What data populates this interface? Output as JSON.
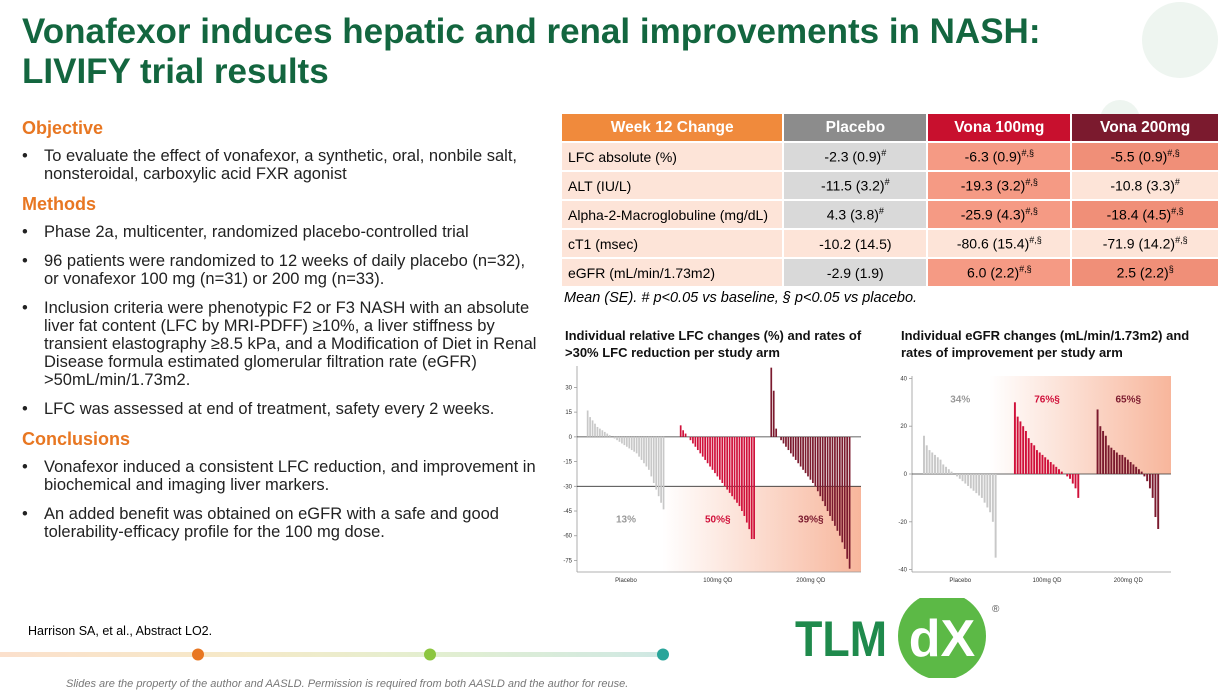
{
  "slide": {
    "title": "Vonafexor induces hepatic and renal improvements in NASH: LIVIFY trial results",
    "sections": [
      {
        "heading": "Objective",
        "bullets": [
          "To evaluate the effect of vonafexor, a synthetic, oral, nonbile salt, nonsteroidal, carboxylic acid FXR agonist"
        ]
      },
      {
        "heading": "Methods",
        "bullets": [
          "Phase 2a, multicenter, randomized placebo-controlled trial",
          "96 patients were randomized to 12 weeks of daily placebo (n=32), or vonafexor 100 mg (n=31) or 200 mg (n=33).",
          "Inclusion criteria were phenotypic F2 or F3 NASH with an absolute liver fat content (LFC by MRI-PDFF) ≥10%, a liver stiffness by transient elastography ≥8.5 kPa, and a Modification of Diet in Renal Disease formula estimated glomerular filtration rate (eGFR) >50mL/min/1.73m2.",
          "LFC was assessed at end of treatment, safety every 2 weeks."
        ]
      },
      {
        "heading": "Conclusions",
        "bullets": [
          "Vonafexor induced a consistent LFC reduction, and improvement in biochemical and imaging liver markers.",
          "An added benefit was obtained on eGFR with a safe and good tolerability-efficacy profile for the 100 mg dose."
        ]
      }
    ],
    "reference": "Harrison SA, et al., Abstract LO2.",
    "footer": "Slides are the property of the author and AASLD. Permission is required from both AASLD and the author for reuse.",
    "logo": {
      "left": "TLM",
      "right": "dX",
      "mark": "®"
    }
  },
  "table": {
    "headers": [
      {
        "text": "Week 12 Change",
        "color": "#f08a3c"
      },
      {
        "text": "Placebo",
        "color": "#8c8c8c"
      },
      {
        "text": "Vona 100mg",
        "color": "#c8102e"
      },
      {
        "text": "Vona 200mg",
        "color": "#7b1a2e"
      }
    ],
    "rows": [
      {
        "label": "LFC absolute (%)",
        "cells": [
          {
            "text": "-2.3 (0.9)",
            "sup": "#",
            "fill": "#d9d9d9"
          },
          {
            "text": "-6.3 (0.9)",
            "sup": "#,§",
            "fill": "#f59a84"
          },
          {
            "text": "-5.5 (0.9)",
            "sup": "#,§",
            "fill": "#f08f78"
          }
        ]
      },
      {
        "label": "ALT (IU/L)",
        "cells": [
          {
            "text": "-11.5 (3.2)",
            "sup": "#",
            "fill": "#d9d9d9"
          },
          {
            "text": "-19.3 (3.2)",
            "sup": "#,§",
            "fill": "#f59a84"
          },
          {
            "text": "-10.8 (3.3)",
            "sup": "#",
            "fill": "#fde4d8"
          }
        ]
      },
      {
        "label": "Alpha-2-Macroglobuline (mg/dL)",
        "cells": [
          {
            "text": "4.3 (3.8)",
            "sup": "#",
            "fill": "#d9d9d9"
          },
          {
            "text": "-25.9 (4.3)",
            "sup": "#,§",
            "fill": "#f59a84"
          },
          {
            "text": "-18.4 (4.5)",
            "sup": "#,§",
            "fill": "#f08f78"
          }
        ]
      },
      {
        "label": "cT1 (msec)",
        "cells": [
          {
            "text": "-10.2 (14.5)",
            "fill": "#fde4d8"
          },
          {
            "text": "-80.6 (15.4)",
            "sup": "#,§",
            "fill": "#fde4d8"
          },
          {
            "text": "-71.9 (14.2)",
            "sup": "#,§",
            "fill": "#fde4d8"
          }
        ]
      },
      {
        "label": "eGFR (mL/min/1.73m2)",
        "cells": [
          {
            "text": "-2.9 (1.9)",
            "fill": "#d9d9d9"
          },
          {
            "text": "6.0 (2.2)",
            "sup": "#,§",
            "fill": "#f59a84"
          },
          {
            "text": "2.5 (2.2)",
            "sup": "§",
            "fill": "#f08f78"
          }
        ]
      }
    ],
    "note": "Mean (SE). # p<0.05 vs baseline, § p<0.05 vs placebo."
  },
  "chart_data": [
    {
      "type": "bar",
      "title": "Individual relative LFC changes (%) and rates of >30% LFC reduction per study arm",
      "ylim": [
        -82,
        43
      ],
      "yticks": [
        30,
        15,
        0,
        -15,
        -30,
        -45,
        -60,
        -75
      ],
      "threshold": -30,
      "series": [
        {
          "name": "Placebo",
          "color": "#c8c8c8",
          "annotation": "13%",
          "values": [
            16,
            12,
            10,
            8,
            6,
            5,
            4,
            3,
            2,
            1,
            0,
            -1,
            -2,
            -3,
            -4,
            -5,
            -6,
            -7,
            -8,
            -9,
            -10,
            -12,
            -14,
            -16,
            -18,
            -20,
            -24,
            -28,
            -32,
            -36,
            -40,
            -44
          ]
        },
        {
          "name": "100mg QD",
          "color": "#d0103a",
          "annotation": "50%§",
          "values": [
            7,
            4,
            2,
            0,
            -2,
            -4,
            -6,
            -8,
            -10,
            -12,
            -14,
            -16,
            -18,
            -20,
            -22,
            -24,
            -26,
            -28,
            -30,
            -32,
            -34,
            -36,
            -38,
            -40,
            -42,
            -45,
            -48,
            -52,
            -56,
            -62,
            -62
          ]
        },
        {
          "name": "200mg QD",
          "color": "#7b1a2e",
          "annotation": "39%§",
          "values": [
            42,
            28,
            5,
            0,
            -2,
            -4,
            -6,
            -8,
            -10,
            -12,
            -14,
            -16,
            -18,
            -20,
            -22,
            -24,
            -26,
            -28,
            -30,
            -33,
            -36,
            -39,
            -42,
            -45,
            -48,
            -51,
            -54,
            -57,
            -60,
            -64,
            -68,
            -74,
            -80
          ]
        }
      ]
    },
    {
      "type": "bar",
      "title": "Individual eGFR changes (mL/min/1.73m2) and rates of improvement per study arm",
      "ylim": [
        -41,
        41
      ],
      "yticks": [
        40,
        20,
        0,
        -20,
        -40
      ],
      "series": [
        {
          "name": "Placebo",
          "color": "#c8c8c8",
          "annotation": "34%",
          "values": [
            16,
            12,
            10,
            9,
            8,
            7,
            6,
            4,
            3,
            2,
            1,
            0,
            -1,
            -2,
            -3,
            -4,
            -5,
            -6,
            -7,
            -8,
            -9,
            -10,
            -12,
            -14,
            -16,
            -20,
            -35
          ]
        },
        {
          "name": "100mg QD",
          "color": "#d0103a",
          "annotation": "76%§",
          "values": [
            30,
            24,
            22,
            20,
            18,
            15,
            13,
            12,
            10,
            9,
            8,
            7,
            6,
            5,
            4,
            3,
            2,
            1,
            0,
            -1,
            -2,
            -4,
            -6,
            -10
          ]
        },
        {
          "name": "200mg QD",
          "color": "#7b1a2e",
          "annotation": "65%§",
          "values": [
            27,
            20,
            18,
            16,
            12,
            11,
            10,
            9,
            8,
            8,
            7,
            6,
            5,
            4,
            3,
            2,
            1,
            -1,
            -3,
            -6,
            -10,
            -18,
            -23
          ]
        }
      ]
    }
  ]
}
